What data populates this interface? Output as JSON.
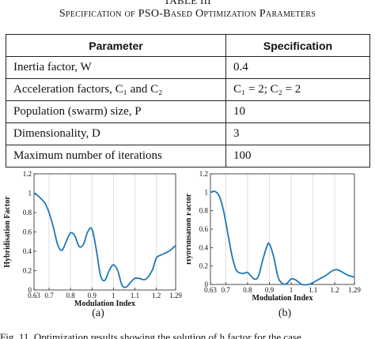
{
  "table": {
    "label": "TABLE III",
    "title": "Specification of PSO-Based Optimization Parameters",
    "headers": [
      "Parameter",
      "Specification"
    ],
    "rows": [
      {
        "parameter": "Inertia factor, W",
        "spec": "0.4"
      },
      {
        "parameter": "Acceleration factors, C₁ and C₂",
        "spec": "C₁ = 2; C₂ = 2"
      },
      {
        "parameter": "Population (swarm) size, P",
        "spec": "10"
      },
      {
        "parameter": "Dimensionality, D",
        "spec": "3"
      },
      {
        "parameter": "Maximum number of iterations",
        "spec": "100"
      }
    ]
  },
  "chart_data": [
    {
      "type": "line",
      "label": "(a)",
      "xlabel": "Modulation Index",
      "ylabel": "Hybridisation Factor",
      "xlim": [
        0.63,
        1.29
      ],
      "ylim": [
        0,
        1.2
      ],
      "x_ticks": [
        "0.63",
        "0.7",
        "0.8",
        "0.9",
        "1",
        "1.1",
        "1.2",
        "1.29"
      ],
      "y_ticks": [
        "0",
        "0.2",
        "0.4",
        "0.6",
        "0.8",
        "1",
        "1.2"
      ],
      "grid": "vertical",
      "color": "#1f77b4",
      "x": [
        0.63,
        0.65,
        0.68,
        0.7,
        0.72,
        0.74,
        0.76,
        0.78,
        0.8,
        0.82,
        0.84,
        0.86,
        0.88,
        0.9,
        0.92,
        0.94,
        0.96,
        0.98,
        1.0,
        1.02,
        1.04,
        1.06,
        1.08,
        1.1,
        1.12,
        1.15,
        1.18,
        1.2,
        1.22,
        1.25,
        1.27,
        1.29
      ],
      "y": [
        1.0,
        0.97,
        0.9,
        0.8,
        0.65,
        0.47,
        0.41,
        0.5,
        0.59,
        0.56,
        0.45,
        0.47,
        0.6,
        0.63,
        0.42,
        0.15,
        0.1,
        0.2,
        0.26,
        0.2,
        0.05,
        0.03,
        0.08,
        0.12,
        0.12,
        0.11,
        0.2,
        0.33,
        0.36,
        0.39,
        0.42,
        0.46
      ]
    },
    {
      "type": "line",
      "label": "(b)",
      "xlabel": "Modulation Index",
      "ylabel": "Hybridisation Factor",
      "xlim": [
        0.63,
        1.29
      ],
      "ylim": [
        0,
        1.2
      ],
      "x_ticks": [
        "0.63",
        "0.7",
        "0.8",
        "0.9",
        "1",
        "1.1",
        "1.2",
        "1.29"
      ],
      "y_ticks": [
        "0",
        "0.2",
        "0.4",
        "0.6",
        "0.8",
        "1",
        "1.2"
      ],
      "grid": "vertical",
      "color": "#1f77b4",
      "x": [
        0.63,
        0.65,
        0.67,
        0.69,
        0.71,
        0.73,
        0.75,
        0.78,
        0.8,
        0.83,
        0.85,
        0.87,
        0.89,
        0.9,
        0.92,
        0.94,
        0.96,
        0.98,
        1.0,
        1.02,
        1.05,
        1.08,
        1.1,
        1.13,
        1.16,
        1.19,
        1.21,
        1.23,
        1.26,
        1.29
      ],
      "y": [
        1.0,
        1.01,
        0.96,
        0.8,
        0.55,
        0.3,
        0.15,
        0.12,
        0.13,
        0.06,
        0.09,
        0.27,
        0.42,
        0.44,
        0.3,
        0.08,
        0.01,
        0.01,
        0.06,
        0.05,
        0.0,
        0.0,
        0.02,
        0.06,
        0.1,
        0.15,
        0.16,
        0.14,
        0.1,
        0.08
      ]
    }
  ],
  "figure_caption": "Fig. 11.   Optimization results showing the solution of h factor for the case"
}
